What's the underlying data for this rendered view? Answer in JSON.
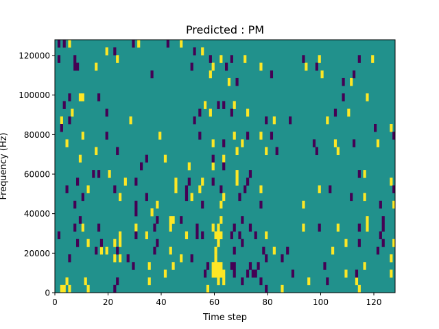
{
  "chart_data": {
    "type": "heatmap",
    "title": "Predicted : PM",
    "xlabel": "Time step",
    "ylabel": "Frequency (Hz)",
    "xlim": [
      0,
      128
    ],
    "ylim": [
      0,
      128000
    ],
    "n_time_steps": 128,
    "n_freq_bins": 33,
    "xticks": [
      0,
      20,
      40,
      60,
      80,
      100,
      120
    ],
    "yticks": [
      0,
      20000,
      40000,
      60000,
      80000,
      100000,
      120000
    ],
    "grid": false,
    "colormap": "viridis",
    "values_legend": {
      "background": 0,
      "high": 1,
      "low": -1
    },
    "colors": {
      "background": "#21918c",
      "high": "#fde725",
      "low": "#440154"
    },
    "high_cells": [
      [
        5,
        32
      ],
      [
        31,
        32
      ],
      [
        47,
        32
      ],
      [
        19,
        31
      ],
      [
        55,
        31
      ],
      [
        23,
        30
      ],
      [
        15,
        29
      ],
      [
        59,
        29
      ],
      [
        58,
        28
      ],
      [
        9,
        25
      ],
      [
        10,
        25
      ],
      [
        56,
        24
      ],
      [
        6,
        23
      ],
      [
        58,
        23
      ],
      [
        2,
        22
      ],
      [
        28,
        22
      ],
      [
        10,
        20
      ],
      [
        39,
        20
      ],
      [
        4,
        19
      ],
      [
        59,
        19
      ],
      [
        15,
        18
      ],
      [
        9,
        17
      ],
      [
        41,
        17
      ],
      [
        50,
        16
      ],
      [
        59,
        16
      ],
      [
        20,
        15
      ],
      [
        26,
        14
      ],
      [
        45,
        14
      ],
      [
        55,
        14
      ],
      [
        12,
        13
      ],
      [
        45,
        13
      ],
      [
        54,
        13
      ],
      [
        24,
        12
      ],
      [
        51,
        12
      ],
      [
        38,
        11
      ],
      [
        36,
        10
      ],
      [
        43,
        9
      ],
      [
        44,
        9
      ],
      [
        10,
        8
      ],
      [
        30,
        8
      ],
      [
        43,
        8
      ],
      [
        59,
        8
      ],
      [
        61,
        8
      ],
      [
        24,
        7
      ],
      [
        34,
        7
      ],
      [
        49,
        7
      ],
      [
        60,
        7
      ],
      [
        61,
        7
      ],
      [
        12,
        6
      ],
      [
        22,
        6
      ],
      [
        24,
        6
      ],
      [
        61,
        6
      ],
      [
        17,
        5
      ],
      [
        19,
        5
      ],
      [
        43,
        5
      ],
      [
        60,
        5
      ],
      [
        22,
        4
      ],
      [
        24,
        4
      ],
      [
        47,
        4
      ],
      [
        60,
        4
      ],
      [
        35,
        3
      ],
      [
        44,
        3
      ],
      [
        59,
        3
      ],
      [
        60,
        3
      ],
      [
        61,
        3
      ],
      [
        41,
        2
      ],
      [
        59,
        2
      ],
      [
        60,
        2
      ],
      [
        61,
        2
      ],
      [
        4,
        1
      ],
      [
        11,
        1
      ],
      [
        35,
        1
      ],
      [
        61,
        1
      ],
      [
        2,
        0
      ],
      [
        3,
        0
      ],
      [
        5,
        0
      ],
      [
        12,
        0
      ],
      [
        57,
        0
      ],
      [
        62,
        30
      ],
      [
        71,
        30
      ],
      [
        99,
        30
      ],
      [
        119,
        30
      ],
      [
        77,
        29
      ],
      [
        94,
        29
      ],
      [
        100,
        28
      ],
      [
        65,
        27
      ],
      [
        111,
        27
      ],
      [
        117,
        25
      ],
      [
        67,
        24
      ],
      [
        72,
        23
      ],
      [
        110,
        23
      ],
      [
        82,
        22
      ],
      [
        102,
        22
      ],
      [
        126,
        21
      ],
      [
        67,
        20
      ],
      [
        77,
        20
      ],
      [
        70,
        19
      ],
      [
        105,
        19
      ],
      [
        121,
        19
      ],
      [
        68,
        18
      ],
      [
        79,
        18
      ],
      [
        106,
        18
      ],
      [
        63,
        17
      ],
      [
        68,
        15
      ],
      [
        116,
        15
      ],
      [
        68,
        14
      ],
      [
        126,
        14
      ],
      [
        77,
        13
      ],
      [
        99,
        13
      ],
      [
        63,
        12
      ],
      [
        116,
        12
      ],
      [
        62,
        11
      ],
      [
        93,
        11
      ],
      [
        127,
        11
      ],
      [
        62,
        9
      ],
      [
        117,
        9
      ],
      [
        93,
        8
      ],
      [
        106,
        8
      ],
      [
        117,
        8
      ],
      [
        62,
        7
      ],
      [
        79,
        7
      ],
      [
        109,
        6
      ],
      [
        127,
        6
      ],
      [
        82,
        5
      ],
      [
        104,
        5
      ],
      [
        126,
        4
      ],
      [
        62,
        3
      ],
      [
        116,
        3
      ],
      [
        62,
        2
      ],
      [
        63,
        2
      ],
      [
        109,
        2
      ],
      [
        126,
        2
      ],
      [
        63,
        1
      ],
      [
        95,
        1
      ],
      [
        113,
        1
      ],
      [
        85,
        0
      ],
      [
        114,
        0
      ]
    ],
    "low_cells": [
      [
        1,
        32
      ],
      [
        3,
        32
      ],
      [
        29,
        32
      ],
      [
        42,
        32
      ],
      [
        22,
        31
      ],
      [
        52,
        31
      ],
      [
        1,
        30
      ],
      [
        7,
        30
      ],
      [
        58,
        30
      ],
      [
        7,
        29
      ],
      [
        8,
        29
      ],
      [
        51,
        29
      ],
      [
        36,
        28
      ],
      [
        5,
        25
      ],
      [
        16,
        25
      ],
      [
        3,
        24
      ],
      [
        61,
        24
      ],
      [
        19,
        23
      ],
      [
        54,
        23
      ],
      [
        5,
        22
      ],
      [
        52,
        22
      ],
      [
        2,
        21
      ],
      [
        19,
        20
      ],
      [
        54,
        20
      ],
      [
        23,
        18
      ],
      [
        34,
        17
      ],
      [
        59,
        17
      ],
      [
        32,
        16
      ],
      [
        14,
        15
      ],
      [
        16,
        15
      ],
      [
        8,
        14
      ],
      [
        30,
        14
      ],
      [
        50,
        14
      ],
      [
        59,
        14
      ],
      [
        4,
        13
      ],
      [
        22,
        13
      ],
      [
        49,
        13
      ],
      [
        10,
        12
      ],
      [
        34,
        12
      ],
      [
        49,
        12
      ],
      [
        7,
        11
      ],
      [
        30,
        11
      ],
      [
        55,
        11
      ],
      [
        30,
        10
      ],
      [
        9,
        9
      ],
      [
        38,
        9
      ],
      [
        47,
        9
      ],
      [
        7,
        8
      ],
      [
        16,
        8
      ],
      [
        37,
        8
      ],
      [
        53,
        8
      ],
      [
        1,
        7
      ],
      [
        30,
        7
      ],
      [
        53,
        7
      ],
      [
        55,
        7
      ],
      [
        8,
        6
      ],
      [
        17,
        6
      ],
      [
        38,
        6
      ],
      [
        15,
        5
      ],
      [
        23,
        5
      ],
      [
        37,
        5
      ],
      [
        5,
        4
      ],
      [
        27,
        4
      ],
      [
        51,
        4
      ],
      [
        29,
        3
      ],
      [
        57,
        3
      ],
      [
        56,
        2
      ],
      [
        23,
        1
      ],
      [
        22,
        0
      ],
      [
        66,
        30
      ],
      [
        93,
        30
      ],
      [
        114,
        30
      ],
      [
        64,
        29
      ],
      [
        98,
        29
      ],
      [
        81,
        28
      ],
      [
        112,
        28
      ],
      [
        68,
        27
      ],
      [
        108,
        27
      ],
      [
        108,
        25
      ],
      [
        63,
        24
      ],
      [
        66,
        23
      ],
      [
        105,
        23
      ],
      [
        79,
        22
      ],
      [
        88,
        22
      ],
      [
        120,
        21
      ],
      [
        72,
        20
      ],
      [
        81,
        20
      ],
      [
        127,
        20
      ],
      [
        63,
        19
      ],
      [
        97,
        19
      ],
      [
        112,
        19
      ],
      [
        83,
        18
      ],
      [
        98,
        18
      ],
      [
        63,
        16
      ],
      [
        73,
        15
      ],
      [
        114,
        15
      ],
      [
        72,
        14
      ],
      [
        62,
        13
      ],
      [
        71,
        13
      ],
      [
        103,
        13
      ],
      [
        127,
        13
      ],
      [
        69,
        12
      ],
      [
        111,
        12
      ],
      [
        77,
        11
      ],
      [
        122,
        11
      ],
      [
        70,
        9
      ],
      [
        123,
        9
      ],
      [
        67,
        8
      ],
      [
        73,
        8
      ],
      [
        99,
        8
      ],
      [
        114,
        8
      ],
      [
        123,
        8
      ],
      [
        66,
        7
      ],
      [
        69,
        7
      ],
      [
        75,
        7
      ],
      [
        122,
        7
      ],
      [
        70,
        6
      ],
      [
        114,
        6
      ],
      [
        123,
        6
      ],
      [
        67,
        5
      ],
      [
        78,
        5
      ],
      [
        87,
        5
      ],
      [
        121,
        5
      ],
      [
        79,
        4
      ],
      [
        85,
        4
      ],
      [
        66,
        3
      ],
      [
        67,
        3
      ],
      [
        73,
        3
      ],
      [
        76,
        3
      ],
      [
        101,
        3
      ],
      [
        67,
        2
      ],
      [
        72,
        2
      ],
      [
        74,
        2
      ],
      [
        75,
        2
      ],
      [
        89,
        2
      ],
      [
        113,
        2
      ],
      [
        70,
        1
      ],
      [
        77,
        1
      ],
      [
        102,
        1
      ],
      [
        79,
        0
      ]
    ]
  }
}
